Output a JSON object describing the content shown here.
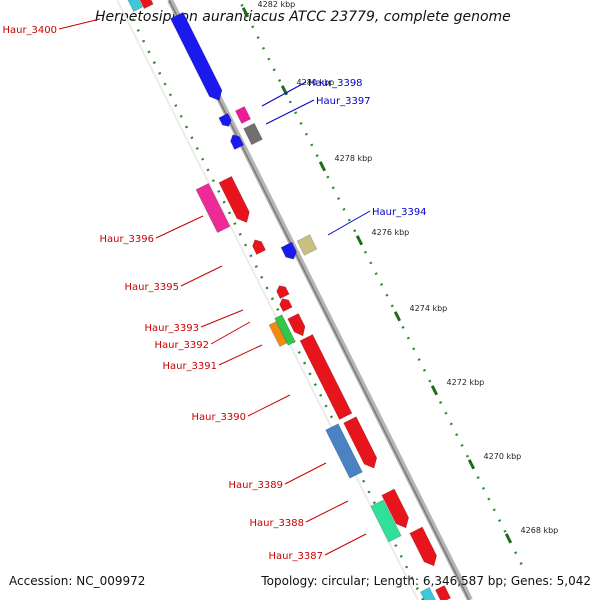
{
  "title": "Herpetosiphon aurantiacus ATCC 23779, complete genome",
  "accession": "Accession: NC_009972",
  "topology": "Topology: circular; Length: 6,346,587 bp; Genes: 5,042",
  "colors": {
    "backbone": "#a0a0a0",
    "tick_dots": "#2e8b2e",
    "label_red": "#cc0000",
    "label_blue": "#0000cc"
  },
  "ticks": [
    {
      "label": "4282 kbp"
    },
    {
      "label": "4280 kbp"
    },
    {
      "label": "4278 kbp"
    },
    {
      "label": "4276 kbp"
    },
    {
      "label": "4274 kbp"
    },
    {
      "label": "4272 kbp"
    },
    {
      "label": "4270 kbp"
    },
    {
      "label": "4268 kbp"
    }
  ],
  "genes": [
    {
      "name": "Haur_3400",
      "strand": "left",
      "color": "red"
    },
    {
      "name": "Haur_3398",
      "strand": "right",
      "color": "blue"
    },
    {
      "name": "Haur_3397",
      "strand": "right",
      "color": "blue"
    },
    {
      "name": "Haur_3396",
      "strand": "left",
      "color": "red"
    },
    {
      "name": "Haur_3394",
      "strand": "right",
      "color": "blue"
    },
    {
      "name": "Haur_3395",
      "strand": "left",
      "color": "red"
    },
    {
      "name": "Haur_3393",
      "strand": "left",
      "color": "red"
    },
    {
      "name": "Haur_3392",
      "strand": "left",
      "color": "red"
    },
    {
      "name": "Haur_3391",
      "strand": "left",
      "color": "red"
    },
    {
      "name": "Haur_3390",
      "strand": "left",
      "color": "red"
    },
    {
      "name": "Haur_3389",
      "strand": "left",
      "color": "red"
    },
    {
      "name": "Haur_3388",
      "strand": "left",
      "color": "red"
    },
    {
      "name": "Haur_3387",
      "strand": "left",
      "color": "red"
    }
  ]
}
